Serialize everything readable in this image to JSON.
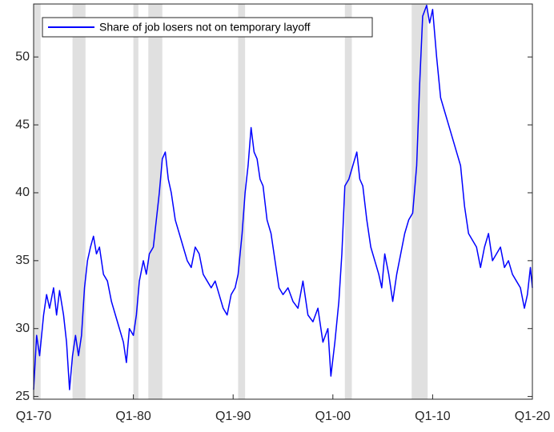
{
  "chart_data": {
    "type": "line",
    "xlim": [
      1970,
      2020
    ],
    "ylim": [
      24.8,
      53.9
    ],
    "xticks": [
      {
        "value": 1970,
        "label": "Q1-70"
      },
      {
        "value": 1980,
        "label": "Q1-80"
      },
      {
        "value": 1990,
        "label": "Q1-90"
      },
      {
        "value": 2000,
        "label": "Q1-00"
      },
      {
        "value": 2010,
        "label": "Q1-10"
      },
      {
        "value": 2020,
        "label": "Q1-20"
      }
    ],
    "yticks": [
      25,
      30,
      35,
      40,
      45,
      50
    ],
    "legend": "top-left",
    "recession_color": "#e0e0e0",
    "recessions": [
      [
        1970.0,
        1970.7
      ],
      [
        1973.9,
        1975.2
      ],
      [
        1980.0,
        1980.5
      ],
      [
        1981.5,
        1982.9
      ],
      [
        1990.5,
        1991.2
      ],
      [
        2001.2,
        2001.9
      ],
      [
        2007.9,
        2009.5
      ]
    ],
    "x": [
      1970.0,
      1970.3,
      1970.6,
      1971.0,
      1971.3,
      1971.6,
      1972.0,
      1972.3,
      1972.6,
      1973.0,
      1973.3,
      1973.6,
      1973.9,
      1974.2,
      1974.5,
      1974.8,
      1975.1,
      1975.4,
      1975.7,
      1976.0,
      1976.3,
      1976.6,
      1977.0,
      1977.4,
      1977.8,
      1978.2,
      1978.6,
      1979.0,
      1979.3,
      1979.6,
      1980.0,
      1980.3,
      1980.6,
      1981.0,
      1981.3,
      1981.6,
      1982.0,
      1982.3,
      1982.6,
      1982.9,
      1983.2,
      1983.5,
      1983.8,
      1984.2,
      1984.6,
      1985.0,
      1985.4,
      1985.8,
      1986.2,
      1986.6,
      1987.0,
      1987.4,
      1987.8,
      1988.2,
      1988.6,
      1989.0,
      1989.4,
      1989.8,
      1990.2,
      1990.5,
      1990.9,
      1991.2,
      1991.5,
      1991.8,
      1992.1,
      1992.4,
      1992.7,
      1993.0,
      1993.4,
      1993.8,
      1994.2,
      1994.6,
      1995.0,
      1995.5,
      1996.0,
      1996.5,
      1997.0,
      1997.5,
      1998.0,
      1998.5,
      1999.0,
      1999.5,
      1999.8,
      2000.2,
      2000.6,
      2000.9,
      2001.2,
      2001.6,
      2002.0,
      2002.4,
      2002.7,
      2003.0,
      2003.4,
      2003.8,
      2004.2,
      2004.6,
      2004.9,
      2005.2,
      2005.6,
      2006.0,
      2006.4,
      2006.8,
      2007.2,
      2007.6,
      2008.0,
      2008.4,
      2008.7,
      2009.0,
      2009.4,
      2009.7,
      2010.0,
      2010.4,
      2010.8,
      2011.2,
      2011.6,
      2012.0,
      2012.4,
      2012.8,
      2013.2,
      2013.6,
      2014.0,
      2014.4,
      2014.8,
      2015.2,
      2015.6,
      2016.0,
      2016.4,
      2016.8,
      2017.2,
      2017.6,
      2018.0,
      2018.4,
      2018.8,
      2019.2,
      2019.5,
      2019.8,
      2020.0
    ],
    "series": [
      {
        "name": "Share of job losers not on temporary layoff",
        "color": "#0000ff",
        "values": [
          25.5,
          29.5,
          28,
          31,
          32.5,
          31.5,
          33,
          31,
          32.8,
          31,
          29,
          25.5,
          28,
          29.5,
          28,
          29.5,
          33,
          35,
          36,
          36.8,
          35.5,
          36,
          34,
          33.5,
          32,
          31,
          30,
          29,
          27.5,
          30,
          29.5,
          31,
          33.5,
          35,
          34,
          35.5,
          36,
          38,
          40,
          42.5,
          43,
          41,
          40,
          38,
          37,
          36,
          35,
          34.5,
          36,
          35.5,
          34,
          33.5,
          33,
          33.5,
          32.5,
          31.5,
          31,
          32.5,
          33,
          34,
          37,
          40,
          42,
          44.8,
          43,
          42.5,
          41,
          40.5,
          38,
          37,
          35,
          33,
          32.5,
          33,
          32,
          31.5,
          33.5,
          31,
          30.5,
          31.5,
          29,
          30,
          26.5,
          29,
          32,
          35.5,
          40.5,
          41,
          42,
          43,
          41,
          40.5,
          38,
          36,
          35,
          34,
          33,
          35.5,
          34,
          32,
          34,
          35.5,
          37,
          38,
          38.5,
          42,
          48,
          53,
          53.8,
          52.5,
          53.5,
          50,
          47,
          46,
          45,
          44,
          43,
          42,
          39,
          37,
          36.5,
          36,
          34.5,
          36,
          37,
          35,
          35.5,
          36,
          34.5,
          35,
          34,
          33.5,
          33,
          31.5,
          32.5,
          34.5,
          33
        ]
      }
    ]
  }
}
